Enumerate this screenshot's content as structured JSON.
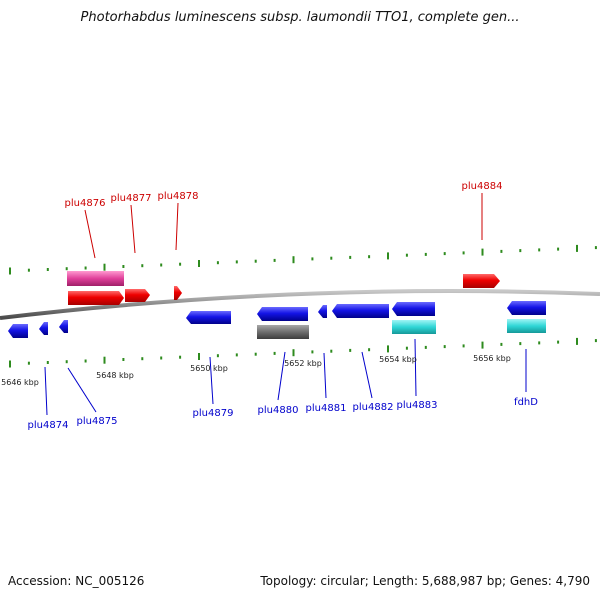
{
  "title": "Photorhabdus luminescens subsp. laumondii TTO1, complete gen...",
  "footer": {
    "accession": "Accession: NC_005126",
    "summary": "Topology: circular; Length: 5,688,987 bp; Genes: 4,790"
  },
  "colors": {
    "forward_gene": "#ff0000",
    "forward_label": "#cc0000",
    "reverse_gene": "#1010e0",
    "reverse_label": "#0000cc",
    "magenta_feature": "#e0409a",
    "cyan_feature": "#2fd6d6",
    "gray_feature": "#707070",
    "backbone": "#8a8a8a",
    "tick": "#2e8b1e"
  },
  "scale_labels": [
    "5646 kbp",
    "5648 kbp",
    "5650 kbp",
    "5652 kbp",
    "5654 kbp",
    "5656 kbp"
  ],
  "forward_labels": [
    "plu4876",
    "plu4877",
    "plu4878",
    "plu4884"
  ],
  "reverse_labels": [
    "plu4874",
    "plu4875",
    "plu4879",
    "plu4880",
    "plu4881",
    "plu4882",
    "plu4883",
    "fdhD"
  ]
}
